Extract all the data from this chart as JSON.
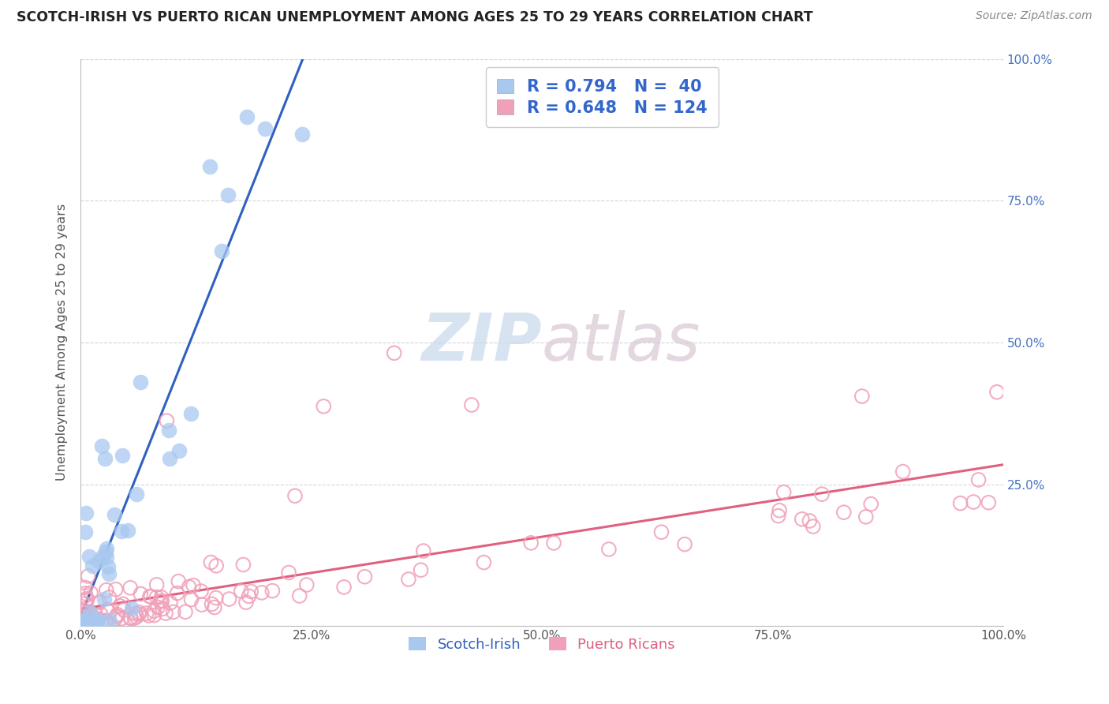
{
  "title": "SCOTCH-IRISH VS PUERTO RICAN UNEMPLOYMENT AMONG AGES 25 TO 29 YEARS CORRELATION CHART",
  "source": "Source: ZipAtlas.com",
  "ylabel": "Unemployment Among Ages 25 to 29 years",
  "xlim": [
    0.0,
    1.0
  ],
  "ylim": [
    0.0,
    1.0
  ],
  "xtick_labels": [
    "0.0%",
    "25.0%",
    "50.0%",
    "75.0%",
    "100.0%"
  ],
  "xtick_vals": [
    0.0,
    0.25,
    0.5,
    0.75,
    1.0
  ],
  "ytick_right_labels": [
    "",
    "25.0%",
    "50.0%",
    "75.0%",
    "100.0%"
  ],
  "ytick_vals": [
    0.0,
    0.25,
    0.5,
    0.75,
    1.0
  ],
  "scotch_irish_R": 0.794,
  "scotch_irish_N": 40,
  "puerto_rican_R": 0.648,
  "puerto_rican_N": 124,
  "scotch_color": "#A8C8F0",
  "puerto_color": "#F0A0B8",
  "scotch_line_color": "#3060C0",
  "puerto_line_color": "#E06080",
  "watermark_color": "#D8E8F8",
  "watermark_color2": "#E8D0D8",
  "background_color": "#FFFFFF",
  "grid_color": "#CCCCCC",
  "title_color": "#222222",
  "source_color": "#888888",
  "axis_label_color": "#555555",
  "right_tick_color": "#4472C4",
  "legend_label_color": "#3366CC"
}
